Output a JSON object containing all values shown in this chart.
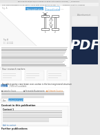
{
  "page_bg": "#e8e8e8",
  "main_bg": "#ffffff",
  "url_bar_color": "#f0f0f0",
  "url_text": "researchgate.net/figure/The-considered-beam-of-the-gantry-crane-fig_..._123456789",
  "url_text_color": "#555555",
  "top_strip_color": "#f5f5f5",
  "title_bar_text": "The Considered Beam of The Gantry Crane With Cross Section of The - A) ... - Download Scientific Diagram",
  "title_bar_color": "#666666",
  "nav_bg": "#ffffff",
  "nav_text_color": "#888888",
  "blue_btn_color": "#4d9fda",
  "blue_btn_text": "View publication",
  "green_btn_color": "#3fa35a",
  "green_btn_text": "Download",
  "diagram_bg": "#ffffff",
  "diagram_border": "#cccccc",
  "pdf_bg": "#1a2a4a",
  "pdf_text": "PDF",
  "pdf_text_color": "#ffffff",
  "advert_label": "Advertisement",
  "advert_color": "#888888",
  "advert_box_color": "#f0f0f0",
  "advert_border": "#dddddd",
  "body_text_color": "#333333",
  "body_line_color": "#999999",
  "accent_blue": "#3d7ebf",
  "orange_color": "#e07820",
  "separator_color": "#eeeeee",
  "heading_color": "#222222",
  "light_text": "#aaaaaa",
  "context_bg": "#fafafa",
  "context_border": "#dddddd"
}
